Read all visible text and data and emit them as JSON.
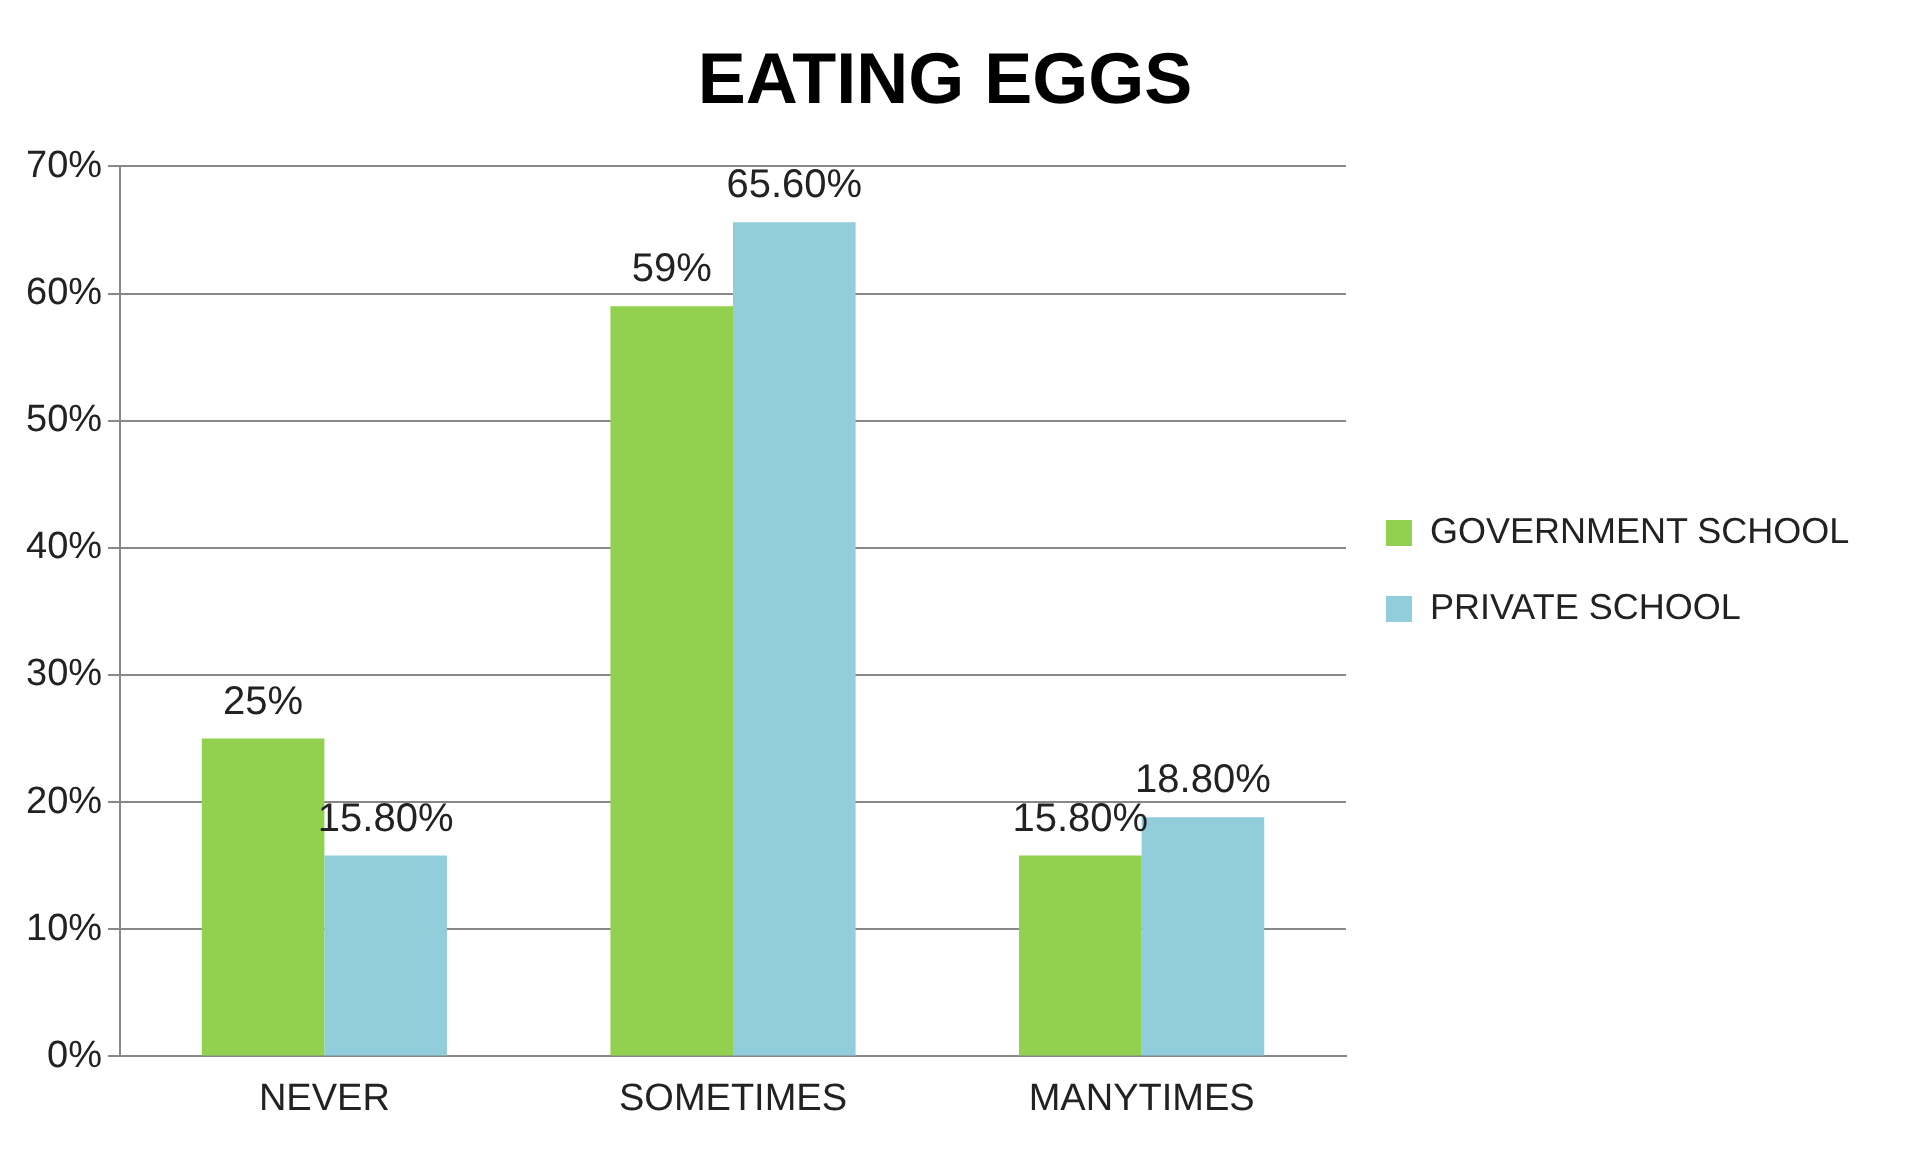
{
  "chart_data": {
    "type": "bar",
    "title": "EATING EGGS",
    "categories": [
      "NEVER",
      "SOMETIMES",
      "MANYTIMES"
    ],
    "series": [
      {
        "name": "GOVERNMENT SCHOOL",
        "color": "#92d050",
        "values": [
          25,
          59,
          15.8
        ],
        "value_labels": [
          "25%",
          "59%",
          "15.80%"
        ]
      },
      {
        "name": "PRIVATE SCHOOL",
        "color": "#92cddc",
        "values": [
          15.8,
          65.6,
          18.8
        ],
        "value_labels": [
          "15.80%",
          "65.60%",
          "18.80%"
        ]
      }
    ],
    "ylim": [
      0,
      70
    ],
    "yticks": [
      {
        "value": 0,
        "label": "0%"
      },
      {
        "value": 10,
        "label": "10%"
      },
      {
        "value": 20,
        "label": "20%"
      },
      {
        "value": 30,
        "label": "30%"
      },
      {
        "value": 40,
        "label": "40%"
      },
      {
        "value": 50,
        "label": "50%"
      },
      {
        "value": 60,
        "label": "60%"
      },
      {
        "value": 70,
        "label": "70%"
      }
    ],
    "grid": "y",
    "legend": "right"
  }
}
